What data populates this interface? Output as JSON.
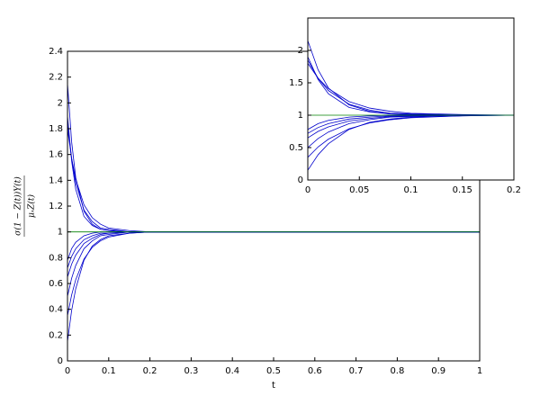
{
  "chart_data": [
    {
      "type": "line",
      "xlabel": "t",
      "ylabel_numerator": "σ(1 − Z(t))Y(t)",
      "ylabel_denominator": "μₓZ(t)",
      "xlim": [
        0,
        1
      ],
      "ylim": [
        0,
        2.4
      ],
      "xticks": [
        0,
        0.1,
        0.2,
        0.3,
        0.4,
        0.5,
        0.6,
        0.7,
        0.8,
        0.9,
        1
      ],
      "yticks": [
        0,
        0.2,
        0.4,
        0.6,
        0.8,
        1,
        1.2,
        1.4,
        1.6,
        1.8,
        2,
        2.2,
        2.4
      ],
      "x": [
        0,
        0.01,
        0.02,
        0.04,
        0.06,
        0.08,
        0.1,
        0.15,
        0.2,
        1
      ],
      "series": [
        {
          "color": "#0000cc",
          "values": [
            2.15,
            1.7,
            1.42,
            1.16,
            1.06,
            1.02,
            1.01,
            1,
            1,
            1
          ]
        },
        {
          "color": "#0000cc",
          "values": [
            1.9,
            1.55,
            1.33,
            1.12,
            1.05,
            1.02,
            1.01,
            1,
            1,
            1
          ]
        },
        {
          "color": "#0000cc",
          "values": [
            1.85,
            1.57,
            1.38,
            1.17,
            1.08,
            1.03,
            1.02,
            1,
            1,
            1
          ]
        },
        {
          "color": "#0000cc",
          "values": [
            1.8,
            1.57,
            1.41,
            1.21,
            1.11,
            1.06,
            1.03,
            1.01,
            1,
            1
          ]
        },
        {
          "color": "#0000cc",
          "values": [
            0.78,
            0.87,
            0.92,
            0.97,
            0.99,
            1,
            1,
            1,
            1,
            1
          ]
        },
        {
          "color": "#0000cc",
          "values": [
            0.72,
            0.81,
            0.87,
            0.94,
            0.97,
            0.99,
            0.99,
            1,
            1,
            1
          ]
        },
        {
          "color": "#0000cc",
          "values": [
            0.65,
            0.75,
            0.82,
            0.91,
            0.95,
            0.98,
            0.99,
            1,
            1,
            1
          ]
        },
        {
          "color": "#0000cc",
          "values": [
            0.5,
            0.64,
            0.74,
            0.87,
            0.93,
            0.97,
            0.98,
            1,
            1,
            1
          ]
        },
        {
          "color": "#0000cc",
          "values": [
            0.35,
            0.51,
            0.63,
            0.79,
            0.88,
            0.93,
            0.96,
            0.99,
            1,
            1
          ]
        },
        {
          "color": "#0000cc",
          "values": [
            0.15,
            0.39,
            0.56,
            0.78,
            0.89,
            0.94,
            0.97,
            0.99,
            1,
            1
          ]
        }
      ],
      "reference": {
        "color": "#008000",
        "x": [
          0,
          1
        ],
        "values": [
          1,
          1
        ]
      }
    },
    {
      "type": "line",
      "xlim": [
        0,
        0.2
      ],
      "ylim": [
        0,
        2.5
      ],
      "xticks": [
        0,
        0.05,
        0.1,
        0.15,
        0.2
      ],
      "yticks": [
        0,
        0.5,
        1,
        1.5,
        2
      ],
      "x": [
        0,
        0.01,
        0.02,
        0.04,
        0.06,
        0.08,
        0.1,
        0.15,
        0.2
      ],
      "series": [
        {
          "color": "#0000cc",
          "values": [
            2.15,
            1.7,
            1.42,
            1.16,
            1.06,
            1.02,
            1.01,
            1,
            1
          ]
        },
        {
          "color": "#0000cc",
          "values": [
            1.9,
            1.55,
            1.33,
            1.12,
            1.05,
            1.02,
            1.01,
            1,
            1
          ]
        },
        {
          "color": "#0000cc",
          "values": [
            1.85,
            1.57,
            1.38,
            1.17,
            1.08,
            1.03,
            1.02,
            1,
            1
          ]
        },
        {
          "color": "#0000cc",
          "values": [
            1.8,
            1.57,
            1.41,
            1.21,
            1.11,
            1.06,
            1.03,
            1.01,
            1
          ]
        },
        {
          "color": "#0000cc",
          "values": [
            0.78,
            0.87,
            0.92,
            0.97,
            0.99,
            1,
            1,
            1,
            1
          ]
        },
        {
          "color": "#0000cc",
          "values": [
            0.72,
            0.81,
            0.87,
            0.94,
            0.97,
            0.99,
            0.99,
            1,
            1
          ]
        },
        {
          "color": "#0000cc",
          "values": [
            0.65,
            0.75,
            0.82,
            0.91,
            0.95,
            0.98,
            0.99,
            1,
            1
          ]
        },
        {
          "color": "#0000cc",
          "values": [
            0.5,
            0.64,
            0.74,
            0.87,
            0.93,
            0.97,
            0.98,
            1,
            1
          ]
        },
        {
          "color": "#0000cc",
          "values": [
            0.35,
            0.51,
            0.63,
            0.79,
            0.88,
            0.93,
            0.96,
            0.99,
            1
          ]
        },
        {
          "color": "#0000cc",
          "values": [
            0.15,
            0.39,
            0.56,
            0.78,
            0.89,
            0.94,
            0.97,
            0.99,
            1
          ]
        }
      ],
      "reference": {
        "color": "#008000",
        "x": [
          0,
          0.2
        ],
        "values": [
          1,
          1
        ]
      }
    }
  ]
}
